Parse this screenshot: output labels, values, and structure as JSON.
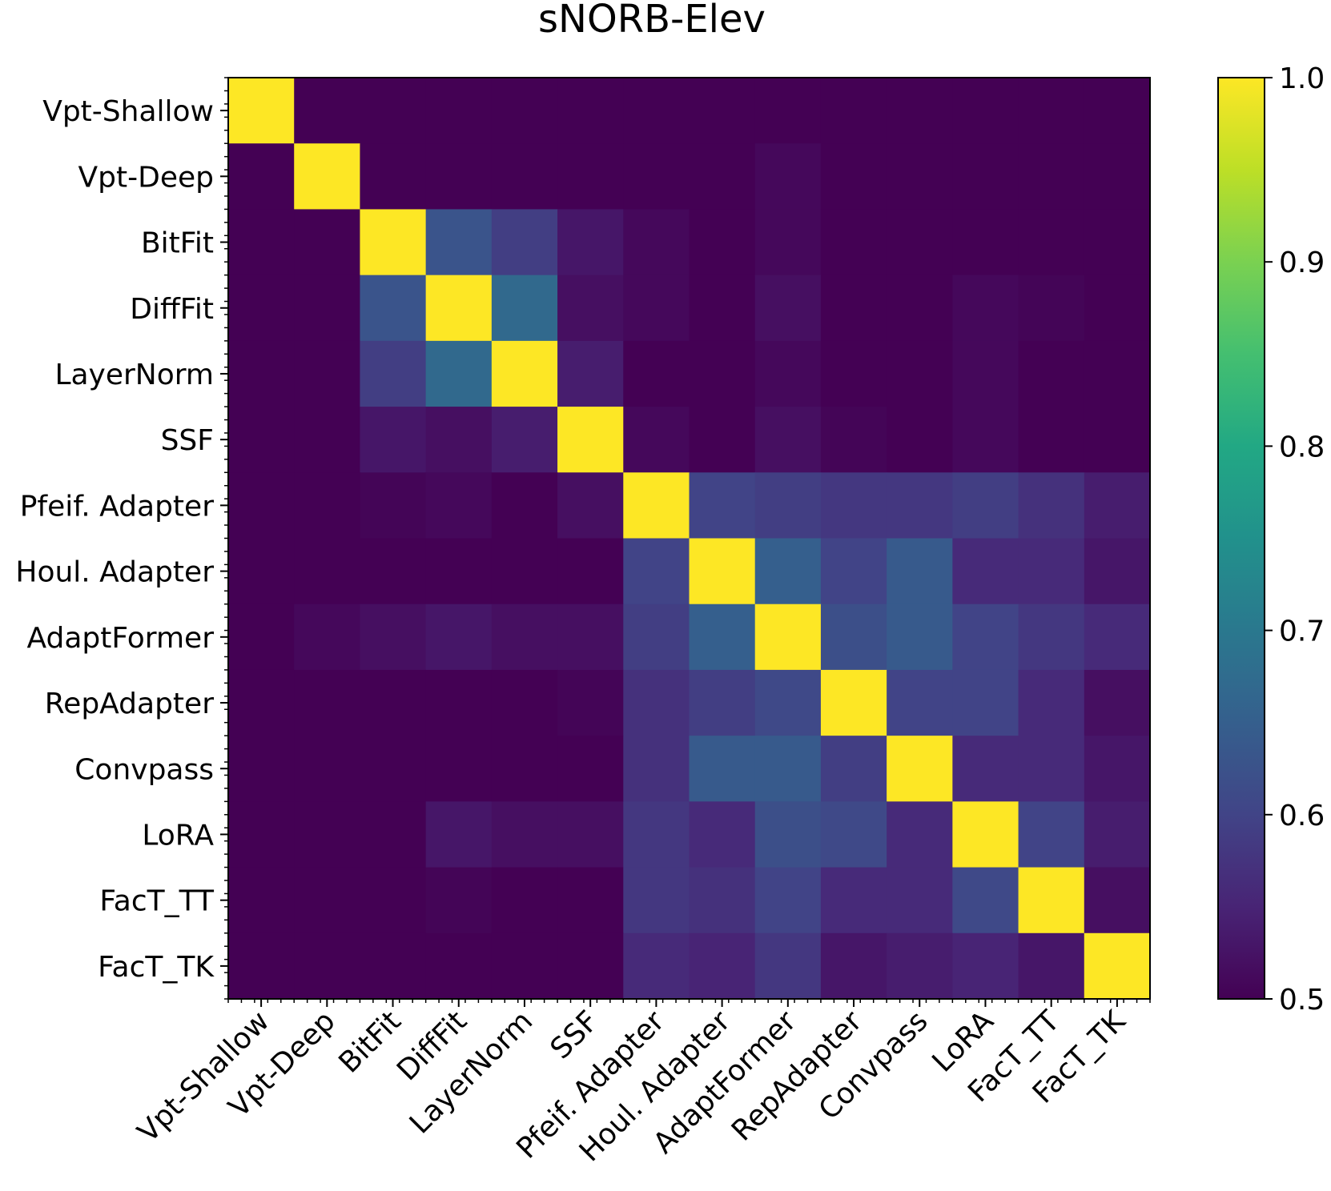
{
  "chart_data": {
    "type": "heatmap",
    "title": "sNORB-Elev",
    "xlabel": "",
    "ylabel": "",
    "labels": [
      "Vpt-Shallow",
      "Vpt-Deep",
      "BitFit",
      "DiffFit",
      "LayerNorm",
      "SSF",
      "Pfeif. Adapter",
      "Houl. Adapter",
      "AdaptFormer",
      "RepAdapter",
      "Convpass",
      "LoRA",
      "FacT_TT",
      "FacT_TK"
    ],
    "matrix": [
      [
        1.0,
        0.5,
        0.5,
        0.5,
        0.5,
        0.5,
        0.5,
        0.5,
        0.5,
        0.5,
        0.5,
        0.5,
        0.5,
        0.5
      ],
      [
        0.5,
        1.0,
        0.5,
        0.5,
        0.5,
        0.5,
        0.5,
        0.5,
        0.51,
        0.5,
        0.5,
        0.5,
        0.5,
        0.5
      ],
      [
        0.5,
        0.5,
        1.0,
        0.63,
        0.59,
        0.53,
        0.51,
        0.5,
        0.51,
        0.5,
        0.5,
        0.5,
        0.5,
        0.5
      ],
      [
        0.5,
        0.5,
        0.63,
        1.0,
        0.67,
        0.52,
        0.51,
        0.5,
        0.52,
        0.5,
        0.5,
        0.51,
        0.505,
        0.5
      ],
      [
        0.5,
        0.5,
        0.59,
        0.67,
        1.0,
        0.54,
        0.5,
        0.5,
        0.51,
        0.5,
        0.5,
        0.51,
        0.5,
        0.5
      ],
      [
        0.5,
        0.5,
        0.53,
        0.52,
        0.54,
        1.0,
        0.51,
        0.5,
        0.52,
        0.505,
        0.5,
        0.51,
        0.5,
        0.5
      ],
      [
        0.5,
        0.5,
        0.505,
        0.51,
        0.5,
        0.52,
        1.0,
        0.6,
        0.59,
        0.58,
        0.58,
        0.59,
        0.57,
        0.54
      ],
      [
        0.5,
        0.5,
        0.5,
        0.5,
        0.5,
        0.5,
        0.6,
        1.0,
        0.65,
        0.6,
        0.64,
        0.56,
        0.56,
        0.53
      ],
      [
        0.5,
        0.51,
        0.52,
        0.53,
        0.52,
        0.52,
        0.59,
        0.65,
        1.0,
        0.62,
        0.64,
        0.6,
        0.58,
        0.56
      ],
      [
        0.5,
        0.5,
        0.5,
        0.5,
        0.5,
        0.505,
        0.57,
        0.59,
        0.61,
        1.0,
        0.6,
        0.6,
        0.56,
        0.52
      ],
      [
        0.5,
        0.5,
        0.5,
        0.5,
        0.5,
        0.5,
        0.57,
        0.64,
        0.64,
        0.59,
        1.0,
        0.56,
        0.56,
        0.53
      ],
      [
        0.5,
        0.5,
        0.5,
        0.53,
        0.52,
        0.52,
        0.58,
        0.56,
        0.62,
        0.61,
        0.56,
        1.0,
        0.6,
        0.54
      ],
      [
        0.5,
        0.5,
        0.5,
        0.505,
        0.5,
        0.5,
        0.58,
        0.57,
        0.6,
        0.56,
        0.56,
        0.61,
        1.0,
        0.52
      ],
      [
        0.5,
        0.5,
        0.5,
        0.5,
        0.5,
        0.5,
        0.56,
        0.55,
        0.58,
        0.53,
        0.54,
        0.55,
        0.53,
        1.0
      ]
    ],
    "colorbar": {
      "min": 0.5,
      "max": 1.0,
      "ticks": [
        0.5,
        0.6,
        0.7,
        0.8,
        0.9,
        1.0
      ],
      "tick_labels": [
        "0.5",
        "0.6",
        "0.7",
        "0.8",
        "0.9",
        "1.0"
      ],
      "colormap": "viridis"
    },
    "grid": false
  }
}
